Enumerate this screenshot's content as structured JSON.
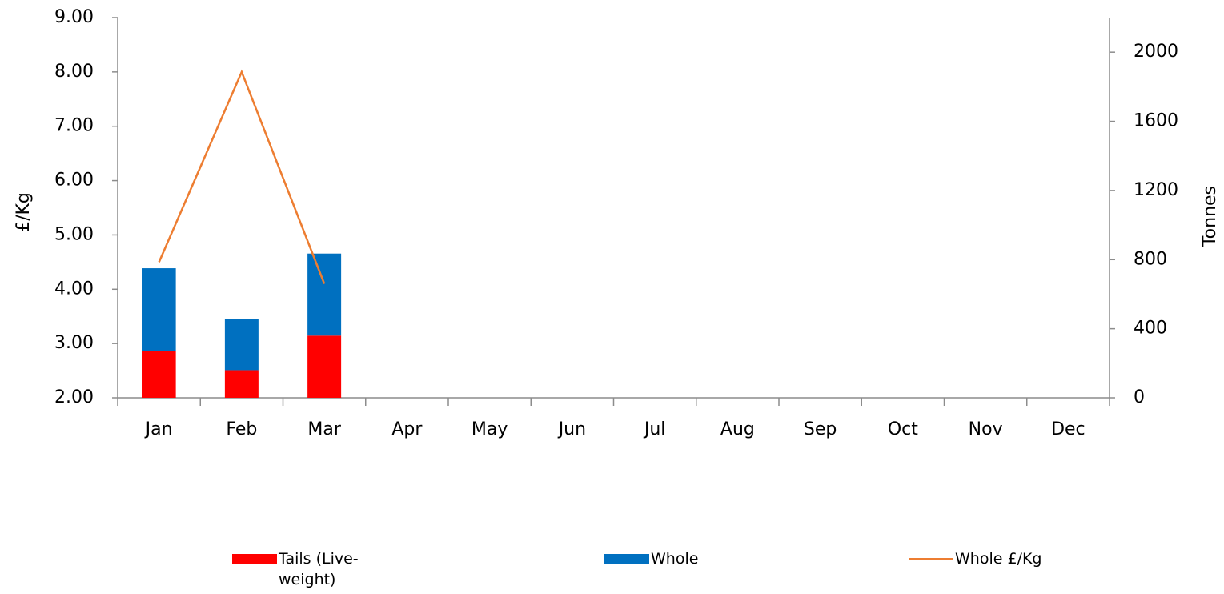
{
  "chart_data": {
    "type": "bar",
    "categories": [
      "Jan",
      "Feb",
      "Mar",
      "Apr",
      "May",
      "Jun",
      "Jul",
      "Aug",
      "Sep",
      "Oct",
      "Nov",
      "Dec"
    ],
    "ylabel": "£/Kg",
    "y2label": "Tonnes",
    "ylim": [
      2,
      9
    ],
    "yticks": [
      {
        "value": 2,
        "label": "2.00"
      },
      {
        "value": 3,
        "label": "3.00"
      },
      {
        "value": 4,
        "label": "4.00"
      },
      {
        "value": 5,
        "label": "5.00"
      },
      {
        "value": 6,
        "label": "6.00"
      },
      {
        "value": 7,
        "label": "7.00"
      },
      {
        "value": 8,
        "label": "8.00"
      },
      {
        "value": 9,
        "label": "9.00"
      }
    ],
    "y2lim": [
      0,
      2200
    ],
    "y2ticks": [
      0,
      400,
      800,
      1200,
      1600,
      2000
    ],
    "stacked": true,
    "grid": false,
    "legend": "bottom",
    "series": [
      {
        "name": "Tails (Live-weight)",
        "type": "bar",
        "axis": "y2",
        "color": "#ff0000",
        "values": [
          270,
          160,
          360,
          null,
          null,
          null,
          null,
          null,
          null,
          null,
          null,
          null
        ]
      },
      {
        "name": "Whole",
        "type": "bar",
        "axis": "y2",
        "color": "#0070c0",
        "values": [
          480,
          295,
          475,
          null,
          null,
          null,
          null,
          null,
          null,
          null,
          null,
          null
        ]
      },
      {
        "name": "Whole £/Kg",
        "type": "line",
        "axis": "y",
        "color": "#ed7d31",
        "values": [
          4.5,
          8.0,
          4.1,
          null,
          null,
          null,
          null,
          null,
          null,
          null,
          null,
          null
        ]
      }
    ]
  }
}
